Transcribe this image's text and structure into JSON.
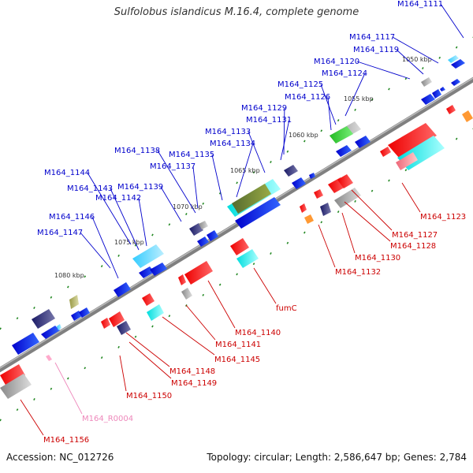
{
  "title": "Sulfolobus islandicus M.16.4, complete genome",
  "accession": "Accession: NC_012726",
  "summary": "Topology: circular; Length: 2,586,647 bp; Genes: 2,784",
  "colors": {
    "upper_label": "#0000cc",
    "lower_label": "#cc0000",
    "rna_label": "#ee88bb",
    "backbone": "#808080",
    "tick": "#228822"
  },
  "scale_labels": [
    "1050 kbp",
    "1055 kbp",
    "1060 kbp",
    "1065 kbp",
    "1070 kbp",
    "1075 kbp",
    "1080 kbp"
  ],
  "upper_labels": [
    "M164_1111",
    "M164_1117",
    "M164_1119",
    "M164_1120",
    "M164_1124",
    "M164_1125",
    "M164_1126",
    "M164_1129",
    "M164_1131",
    "M164_1133",
    "M164_1134",
    "M164_1135",
    "M164_1137",
    "M164_1138",
    "M164_1139",
    "M164_1144",
    "M164_1143",
    "M164_1142",
    "M164_1146",
    "M164_1147"
  ],
  "lower_labels": [
    "M164_1123",
    "M164_1127",
    "M164_1128",
    "M164_1130",
    "M164_1132",
    "fumC",
    "M164_1140",
    "M164_1141",
    "M164_1145",
    "M164_1148",
    "M164_1149",
    "M164_1150",
    "M164_1156"
  ],
  "rna_labels": [
    "M164_R0004"
  ]
}
